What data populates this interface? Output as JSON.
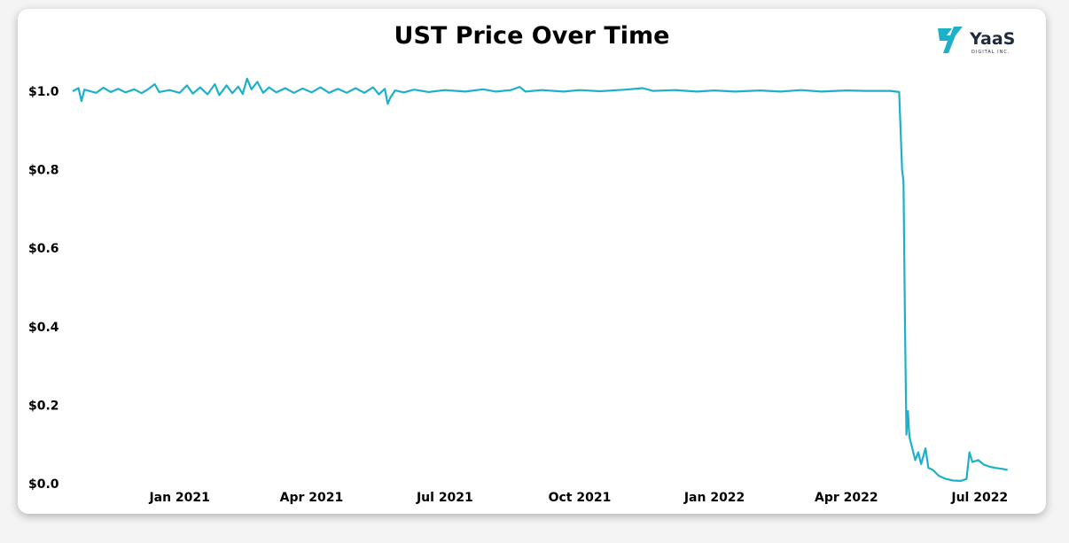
{
  "logo": {
    "name": "YaaS",
    "tagline": "DIGITAL INC.",
    "color": "#1fb0c9"
  },
  "chart_data": {
    "type": "line",
    "title": "UST Price Over Time",
    "xlabel": "",
    "ylabel": "",
    "x_tick_labels": [
      "Jan 2021",
      "Apr 2021",
      "Jul 2021",
      "Oct 2021",
      "Jan 2022",
      "Apr 2022",
      "Jul 2022"
    ],
    "x_tick_dates": [
      "2021-01-01",
      "2021-04-01",
      "2021-07-01",
      "2021-10-01",
      "2022-01-01",
      "2022-04-01",
      "2022-07-01"
    ],
    "x_range": [
      "2020-10-20",
      "2022-07-22"
    ],
    "y_tick_labels": [
      "$0.0",
      "$0.2",
      "$0.4",
      "$0.6",
      "$0.8",
      "$1.0"
    ],
    "y_ticks": [
      0,
      0.2,
      0.4,
      0.6,
      0.8,
      1.0
    ],
    "ylim": [
      0,
      1.05
    ],
    "grid": false,
    "legend": "none",
    "line_color": "#1fb0c9",
    "series": [
      {
        "values": [
          [
            "2020-10-20",
            1.0
          ],
          [
            "2020-10-24",
            1.008
          ],
          [
            "2020-10-26",
            0.975
          ],
          [
            "2020-10-28",
            1.004
          ],
          [
            "2020-11-05",
            0.996
          ],
          [
            "2020-11-10",
            1.009
          ],
          [
            "2020-11-15",
            0.998
          ],
          [
            "2020-11-20",
            1.006
          ],
          [
            "2020-11-25",
            0.997
          ],
          [
            "2020-12-01",
            1.005
          ],
          [
            "2020-12-06",
            0.995
          ],
          [
            "2020-12-10",
            1.004
          ],
          [
            "2020-12-15",
            1.018
          ],
          [
            "2020-12-18",
            0.998
          ],
          [
            "2020-12-25",
            1.003
          ],
          [
            "2021-01-01",
            0.996
          ],
          [
            "2021-01-06",
            1.015
          ],
          [
            "2021-01-10",
            0.994
          ],
          [
            "2021-01-15",
            1.01
          ],
          [
            "2021-01-20",
            0.992
          ],
          [
            "2021-01-25",
            1.018
          ],
          [
            "2021-01-28",
            0.99
          ],
          [
            "2021-02-02",
            1.015
          ],
          [
            "2021-02-06",
            0.995
          ],
          [
            "2021-02-10",
            1.012
          ],
          [
            "2021-02-13",
            0.993
          ],
          [
            "2021-02-16",
            1.032
          ],
          [
            "2021-02-19",
            1.005
          ],
          [
            "2021-02-23",
            1.024
          ],
          [
            "2021-02-27",
            0.996
          ],
          [
            "2021-03-03",
            1.01
          ],
          [
            "2021-03-08",
            0.997
          ],
          [
            "2021-03-14",
            1.008
          ],
          [
            "2021-03-20",
            0.996
          ],
          [
            "2021-03-26",
            1.007
          ],
          [
            "2021-04-01",
            0.997
          ],
          [
            "2021-04-07",
            1.01
          ],
          [
            "2021-04-13",
            0.996
          ],
          [
            "2021-04-19",
            1.006
          ],
          [
            "2021-04-25",
            0.996
          ],
          [
            "2021-05-01",
            1.008
          ],
          [
            "2021-05-07",
            0.996
          ],
          [
            "2021-05-13",
            1.01
          ],
          [
            "2021-05-17",
            0.992
          ],
          [
            "2021-05-21",
            1.006
          ],
          [
            "2021-05-23",
            0.968
          ],
          [
            "2021-05-25",
            0.985
          ],
          [
            "2021-05-28",
            1.002
          ],
          [
            "2021-06-03",
            0.997
          ],
          [
            "2021-06-10",
            1.004
          ],
          [
            "2021-06-20",
            0.998
          ],
          [
            "2021-07-01",
            1.003
          ],
          [
            "2021-07-15",
            0.999
          ],
          [
            "2021-07-27",
            1.005
          ],
          [
            "2021-08-05",
            0.999
          ],
          [
            "2021-08-15",
            1.003
          ],
          [
            "2021-08-21",
            1.011
          ],
          [
            "2021-08-25",
            0.999
          ],
          [
            "2021-09-05",
            1.003
          ],
          [
            "2021-09-20",
            0.999
          ],
          [
            "2021-10-01",
            1.003
          ],
          [
            "2021-10-15",
            1.0
          ],
          [
            "2021-11-01",
            1.004
          ],
          [
            "2021-11-13",
            1.008
          ],
          [
            "2021-11-20",
            1.001
          ],
          [
            "2021-12-05",
            1.003
          ],
          [
            "2021-12-20",
            0.999
          ],
          [
            "2022-01-01",
            1.002
          ],
          [
            "2022-01-15",
            0.999
          ],
          [
            "2022-02-01",
            1.002
          ],
          [
            "2022-02-15",
            0.999
          ],
          [
            "2022-03-01",
            1.003
          ],
          [
            "2022-03-15",
            0.999
          ],
          [
            "2022-04-01",
            1.002
          ],
          [
            "2022-04-15",
            1.001
          ],
          [
            "2022-05-01",
            1.001
          ],
          [
            "2022-05-07",
            0.998
          ],
          [
            "2022-05-09",
            0.8
          ],
          [
            "2022-05-10",
            0.77
          ],
          [
            "2022-05-11",
            0.4
          ],
          [
            "2022-05-12",
            0.125
          ],
          [
            "2022-05-13",
            0.185
          ],
          [
            "2022-05-14",
            0.12
          ],
          [
            "2022-05-16",
            0.09
          ],
          [
            "2022-05-18",
            0.06
          ],
          [
            "2022-05-20",
            0.08
          ],
          [
            "2022-05-22",
            0.05
          ],
          [
            "2022-05-25",
            0.09
          ],
          [
            "2022-05-27",
            0.04
          ],
          [
            "2022-05-30",
            0.035
          ],
          [
            "2022-06-03",
            0.02
          ],
          [
            "2022-06-08",
            0.012
          ],
          [
            "2022-06-13",
            0.008
          ],
          [
            "2022-06-18",
            0.007
          ],
          [
            "2022-06-22",
            0.012
          ],
          [
            "2022-06-24",
            0.08
          ],
          [
            "2022-06-26",
            0.055
          ],
          [
            "2022-06-30",
            0.06
          ],
          [
            "2022-07-04",
            0.048
          ],
          [
            "2022-07-08",
            0.043
          ],
          [
            "2022-07-12",
            0.04
          ],
          [
            "2022-07-16",
            0.038
          ],
          [
            "2022-07-20",
            0.035
          ]
        ]
      }
    ]
  }
}
